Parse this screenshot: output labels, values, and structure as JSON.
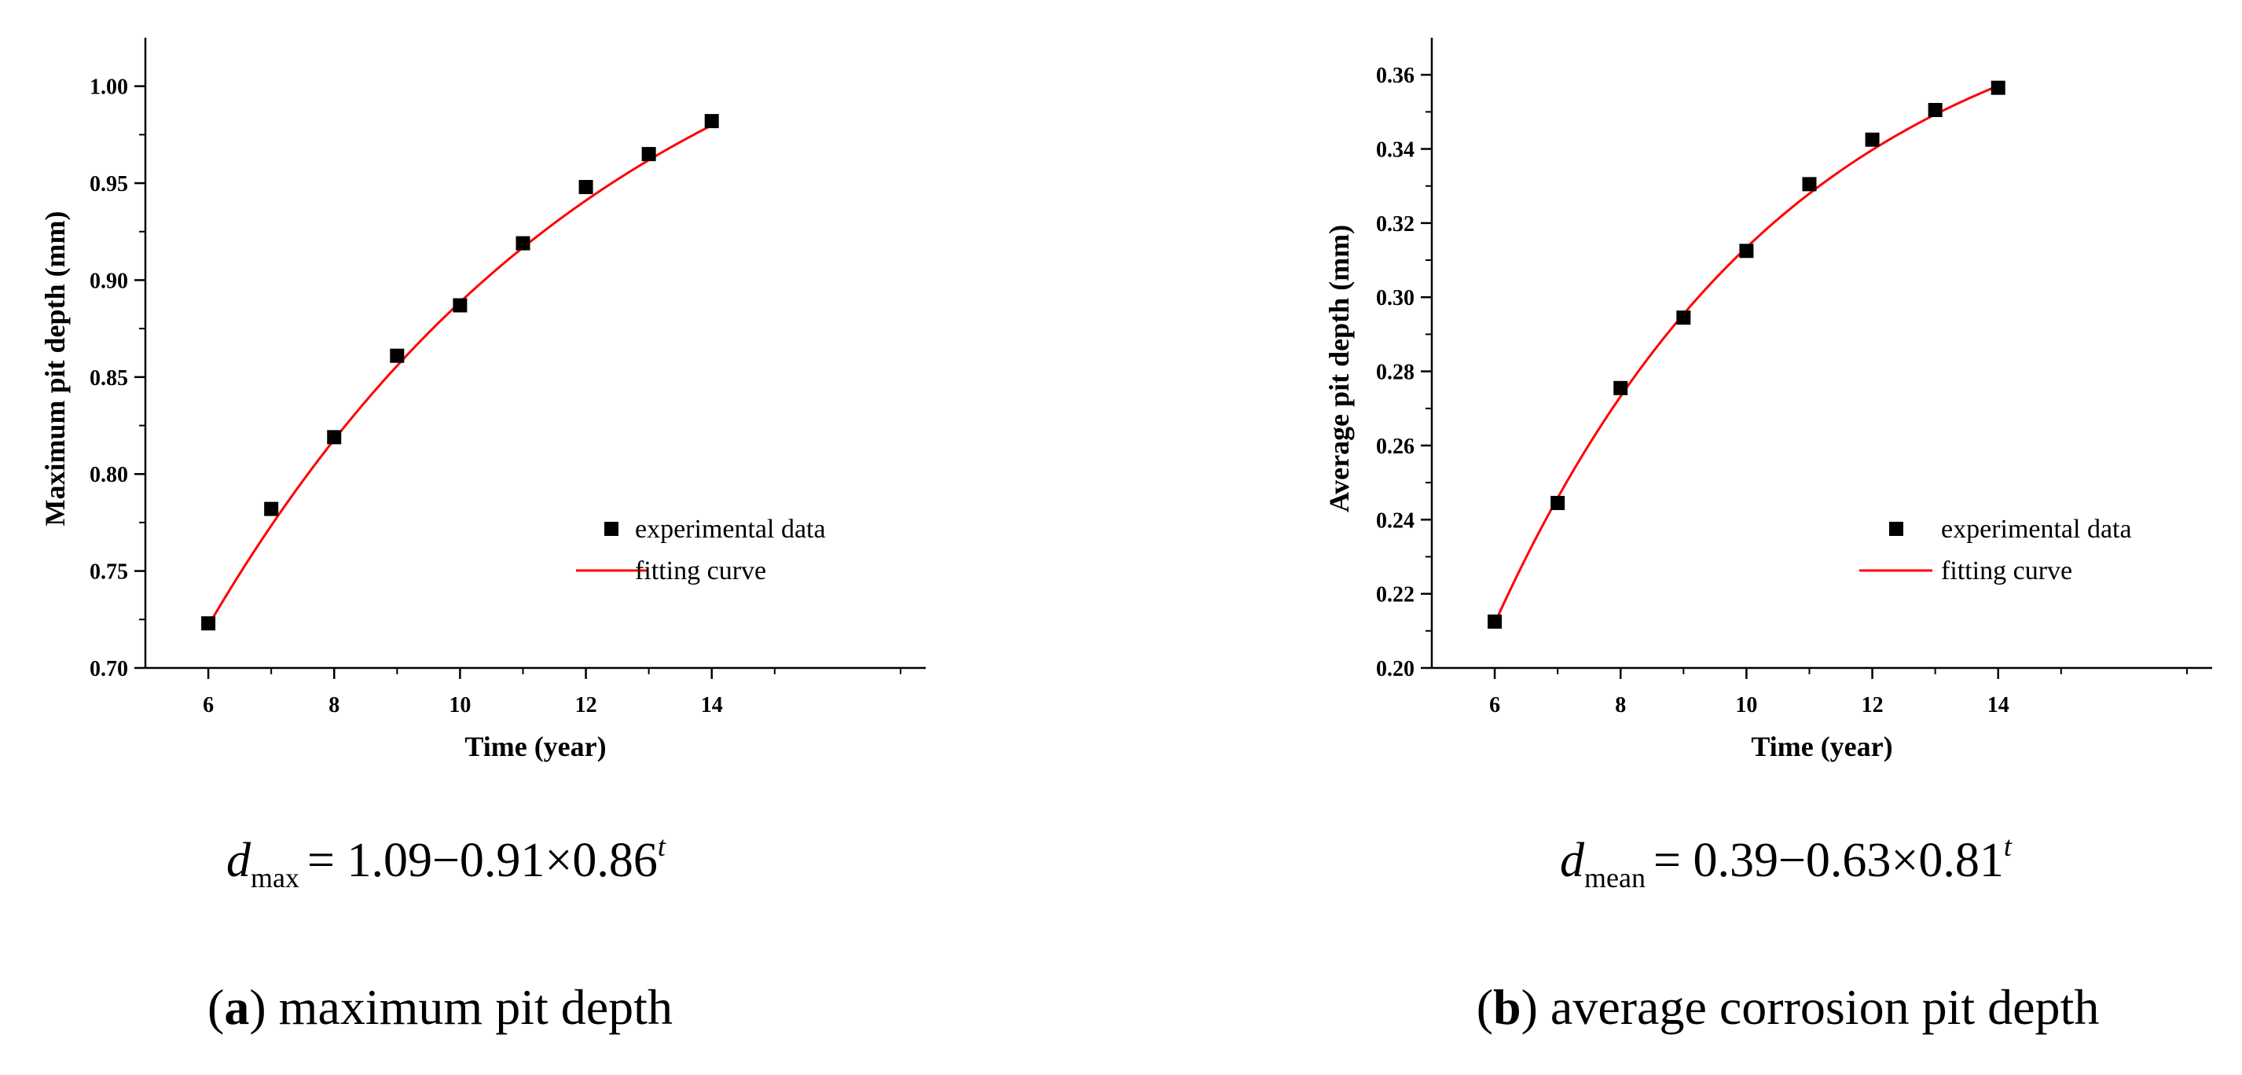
{
  "chart_data": [
    {
      "type": "scatter",
      "id": "a",
      "title": "",
      "xlabel": "Time (year)",
      "ylabel": "Maximum pit depth (mm)",
      "xlim": [
        5,
        17.4
      ],
      "ylim": [
        0.7,
        1.025
      ],
      "xticks": [
        6,
        8,
        10,
        12,
        14
      ],
      "xtick_labels": [
        "6",
        "8",
        "10",
        "12",
        "14"
      ],
      "yticks": [
        0.7,
        0.75,
        0.8,
        0.85,
        0.9,
        0.95,
        1.0
      ],
      "ytick_labels": [
        "0.70",
        "0.75",
        "0.80",
        "0.85",
        "0.90",
        "0.95",
        "1.00"
      ],
      "series": [
        {
          "name": "experimental data",
          "kind": "scatter",
          "color": "#000000",
          "x": [
            6,
            7,
            8,
            9,
            10,
            11,
            12,
            13,
            14
          ],
          "y": [
            0.723,
            0.782,
            0.819,
            0.861,
            0.887,
            0.919,
            0.948,
            0.965,
            0.982
          ]
        },
        {
          "name": "fitting curve",
          "kind": "line",
          "color": "#ff0000",
          "model": {
            "a": 1.09,
            "b": 0.91,
            "c": 0.86
          },
          "x_range": [
            6,
            14
          ]
        }
      ],
      "legend": [
        "experimental data",
        "fitting curve"
      ],
      "legend_position": "lower-right",
      "equation": {
        "lhs": "d",
        "sub": "max",
        "rhs": "1.09−0.91×0.86",
        "sup": "t"
      },
      "caption": {
        "letter": "a",
        "open": "(",
        "close": ")",
        "text": " maximum pit depth"
      }
    },
    {
      "type": "scatter",
      "id": "b",
      "title": "",
      "xlabel": "Time (year)",
      "ylabel": "Average pit depth (mm)",
      "xlim": [
        5,
        17.4
      ],
      "ylim": [
        0.2,
        0.37
      ],
      "xticks": [
        6,
        8,
        10,
        12,
        14
      ],
      "xtick_labels": [
        "6",
        "8",
        "10",
        "12",
        "14"
      ],
      "yticks": [
        0.2,
        0.22,
        0.24,
        0.26,
        0.28,
        0.3,
        0.32,
        0.34,
        0.36
      ],
      "ytick_labels": [
        "0.20",
        "0.22",
        "0.24",
        "0.26",
        "0.28",
        "0.30",
        "0.32",
        "0.34",
        "0.36"
      ],
      "series": [
        {
          "name": "experimental data",
          "kind": "scatter",
          "color": "#000000",
          "x": [
            6,
            7,
            8,
            9,
            10,
            11,
            12,
            13,
            14
          ],
          "y": [
            0.2125,
            0.2445,
            0.2755,
            0.2945,
            0.3125,
            0.3305,
            0.3425,
            0.3505,
            0.3565
          ]
        },
        {
          "name": "fitting curve",
          "kind": "line",
          "color": "#ff0000",
          "model": {
            "a": 0.39,
            "b": 0.63,
            "c": 0.81
          },
          "x_range": [
            6,
            14
          ]
        }
      ],
      "legend": [
        "experimental data",
        "fitting curve"
      ],
      "legend_position": "lower-right",
      "equation": {
        "lhs": "d",
        "sub": "mean",
        "rhs": "0.39−0.63×0.81",
        "sup": "t"
      },
      "caption": {
        "letter": "b",
        "open": "(",
        "close": ")",
        "text": " average corrosion pit depth"
      }
    }
  ]
}
